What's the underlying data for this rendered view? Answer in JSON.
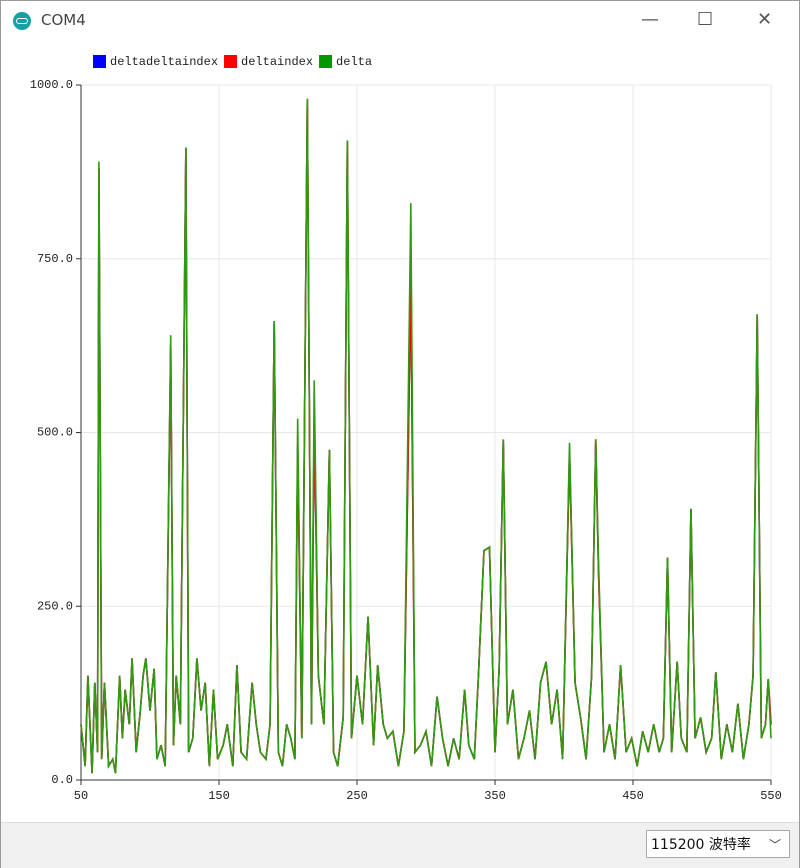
{
  "window": {
    "title": "COM4"
  },
  "chart_data": {
    "type": "line",
    "x": [
      50,
      53,
      55,
      58,
      60,
      62,
      63,
      65,
      67,
      70,
      73,
      75,
      78,
      80,
      82,
      85,
      87,
      90,
      93,
      95,
      97,
      100,
      103,
      105,
      108,
      111,
      115,
      117,
      119,
      122,
      126,
      128,
      131,
      134,
      137,
      140,
      143,
      146,
      149,
      153,
      156,
      160,
      163,
      166,
      170,
      174,
      177,
      180,
      184,
      187,
      190,
      193,
      196,
      199,
      202,
      205,
      207,
      210,
      214,
      217,
      219,
      222,
      226,
      230,
      233,
      236,
      240,
      243,
      246,
      250,
      254,
      258,
      262,
      265,
      269,
      272,
      276,
      280,
      284,
      289,
      292,
      296,
      300,
      304,
      308,
      312,
      316,
      320,
      324,
      328,
      331,
      335,
      338,
      342,
      346,
      350,
      353,
      356,
      359,
      363,
      367,
      371,
      375,
      379,
      383,
      387,
      391,
      395,
      399,
      404,
      408,
      412,
      416,
      420,
      423,
      425,
      429,
      433,
      437,
      441,
      445,
      449,
      453,
      457,
      461,
      465,
      469,
      472,
      475,
      478,
      482,
      485,
      489,
      492,
      495,
      499,
      503,
      507,
      510,
      514,
      518,
      522,
      526,
      530,
      534,
      537,
      540,
      543,
      546,
      548,
      550
    ],
    "series": [
      {
        "name": "deltadeltaindex",
        "color": "#0000ff",
        "line_color": "#2b3f9e",
        "values": [
          80,
          20,
          150,
          10,
          140,
          40,
          880,
          30,
          140,
          20,
          30,
          10,
          150,
          60,
          130,
          80,
          175,
          40,
          100,
          150,
          175,
          100,
          160,
          30,
          50,
          20,
          625,
          50,
          150,
          80,
          910,
          40,
          60,
          175,
          100,
          140,
          20,
          130,
          30,
          50,
          80,
          20,
          165,
          40,
          30,
          140,
          80,
          40,
          30,
          80,
          660,
          40,
          20,
          80,
          60,
          30,
          480,
          60,
          980,
          80,
          520,
          150,
          80,
          475,
          40,
          20,
          90,
          920,
          60,
          150,
          80,
          235,
          50,
          165,
          80,
          60,
          70,
          20,
          70,
          720,
          40,
          50,
          70,
          20,
          120,
          60,
          20,
          60,
          30,
          130,
          50,
          30,
          150,
          330,
          335,
          40,
          160,
          490,
          80,
          130,
          30,
          60,
          100,
          30,
          140,
          170,
          80,
          130,
          30,
          470,
          140,
          90,
          30,
          150,
          490,
          300,
          40,
          80,
          30,
          165,
          40,
          60,
          20,
          70,
          40,
          80,
          40,
          60,
          320,
          40,
          170,
          60,
          40,
          390,
          60,
          90,
          40,
          60,
          155,
          30,
          80,
          40,
          110,
          30,
          80,
          150,
          670,
          60,
          80,
          145,
          80
        ]
      },
      {
        "name": "deltaindex",
        "color": "#ff0000",
        "line_color": "#ff0000",
        "values": [
          80,
          20,
          150,
          10,
          140,
          40,
          880,
          30,
          140,
          20,
          30,
          10,
          150,
          60,
          130,
          80,
          175,
          40,
          100,
          150,
          175,
          100,
          160,
          30,
          50,
          20,
          625,
          50,
          150,
          80,
          910,
          40,
          60,
          175,
          100,
          140,
          20,
          130,
          30,
          50,
          80,
          20,
          165,
          40,
          30,
          140,
          80,
          40,
          30,
          80,
          660,
          40,
          20,
          80,
          60,
          30,
          480,
          60,
          980,
          80,
          520,
          150,
          80,
          475,
          40,
          20,
          90,
          920,
          60,
          150,
          80,
          235,
          50,
          165,
          80,
          60,
          70,
          20,
          70,
          720,
          40,
          50,
          70,
          20,
          120,
          60,
          20,
          60,
          30,
          130,
          50,
          30,
          150,
          330,
          335,
          40,
          160,
          490,
          80,
          130,
          30,
          60,
          100,
          30,
          140,
          170,
          80,
          130,
          30,
          470,
          140,
          90,
          30,
          150,
          490,
          300,
          40,
          80,
          30,
          165,
          40,
          60,
          20,
          70,
          40,
          80,
          40,
          60,
          320,
          40,
          170,
          60,
          40,
          390,
          60,
          90,
          40,
          60,
          155,
          30,
          80,
          40,
          110,
          30,
          80,
          150,
          670,
          60,
          80,
          145,
          80
        ]
      },
      {
        "name": "delta",
        "color": "#009900",
        "line_color": "#2f9a12",
        "values": [
          80,
          20,
          150,
          10,
          140,
          40,
          890,
          30,
          140,
          20,
          30,
          10,
          150,
          60,
          130,
          80,
          175,
          40,
          100,
          150,
          175,
          100,
          160,
          30,
          50,
          20,
          640,
          50,
          150,
          80,
          910,
          40,
          60,
          175,
          100,
          140,
          20,
          130,
          30,
          50,
          80,
          20,
          165,
          40,
          30,
          140,
          80,
          40,
          30,
          80,
          660,
          40,
          20,
          80,
          60,
          30,
          520,
          60,
          980,
          80,
          575,
          150,
          80,
          475,
          40,
          20,
          90,
          920,
          60,
          150,
          80,
          235,
          50,
          165,
          80,
          60,
          70,
          20,
          70,
          830,
          40,
          50,
          70,
          20,
          120,
          60,
          20,
          60,
          30,
          130,
          50,
          30,
          150,
          330,
          335,
          40,
          160,
          490,
          80,
          130,
          30,
          60,
          100,
          30,
          140,
          170,
          80,
          130,
          30,
          485,
          140,
          90,
          30,
          150,
          490,
          315,
          40,
          80,
          30,
          165,
          40,
          60,
          20,
          70,
          40,
          80,
          40,
          60,
          320,
          40,
          170,
          60,
          40,
          390,
          60,
          90,
          40,
          60,
          155,
          30,
          80,
          40,
          110,
          30,
          80,
          150,
          670,
          60,
          80,
          145,
          60
        ]
      }
    ],
    "xlim": [
      50,
      550
    ],
    "xticks": [
      50,
      150,
      250,
      350,
      450,
      550
    ],
    "ylim": [
      0,
      1000
    ],
    "yticks": [
      {
        "value": 0,
        "label": "0.0"
      },
      {
        "value": 250,
        "label": "250.0"
      },
      {
        "value": 500,
        "label": "500.0"
      },
      {
        "value": 750,
        "label": "750.0"
      },
      {
        "value": 1000,
        "label": "1000.0"
      }
    ],
    "grid": true,
    "legend": "top-left"
  },
  "baud": {
    "rate": "115200",
    "label": "波特率"
  }
}
